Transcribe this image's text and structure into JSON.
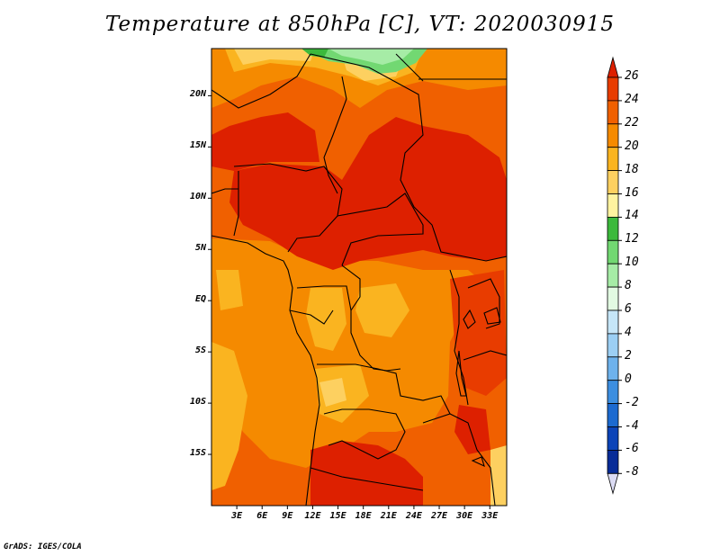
{
  "title": "Temperature at 850hPa [C], VT: 2020030915",
  "footer": "GrADS: IGES/COLA",
  "lat_labels": [
    {
      "text": "20N",
      "lat": 20
    },
    {
      "text": "15N",
      "lat": 15
    },
    {
      "text": "10N",
      "lat": 10
    },
    {
      "text": "5N",
      "lat": 5
    },
    {
      "text": "EQ",
      "lat": 0
    },
    {
      "text": "5S",
      "lat": -5
    },
    {
      "text": "10S",
      "lat": -10
    },
    {
      "text": "15S",
      "lat": -15
    }
  ],
  "lon_labels": [
    {
      "text": "3E",
      "lon": 3
    },
    {
      "text": "6E",
      "lon": 6
    },
    {
      "text": "9E",
      "lon": 9
    },
    {
      "text": "12E",
      "lon": 12
    },
    {
      "text": "15E",
      "lon": 15
    },
    {
      "text": "18E",
      "lon": 18
    },
    {
      "text": "21E",
      "lon": 21
    },
    {
      "text": "24E",
      "lon": 24
    },
    {
      "text": "27E",
      "lon": 27
    },
    {
      "text": "30E",
      "lon": 30
    },
    {
      "text": "33E",
      "lon": 33
    }
  ],
  "colorbar": {
    "labels": [
      "26",
      "24",
      "22",
      "20",
      "18",
      "16",
      "14",
      "12",
      "10",
      "8",
      "6",
      "4",
      "2",
      "0",
      "-2",
      "-4",
      "-6",
      "-8"
    ],
    "colors": [
      "#dd2000",
      "#e83c00",
      "#f06000",
      "#f58a00",
      "#fab420",
      "#fdd060",
      "#fff3a0",
      "#3cb93c",
      "#72d872",
      "#a6eca6",
      "#e2fae2",
      "#c6e6f8",
      "#9ccff4",
      "#6eb2ec",
      "#3c8ee0",
      "#1c6ad0",
      "#0c44b8",
      "#082c98",
      "#041060"
    ]
  }
}
